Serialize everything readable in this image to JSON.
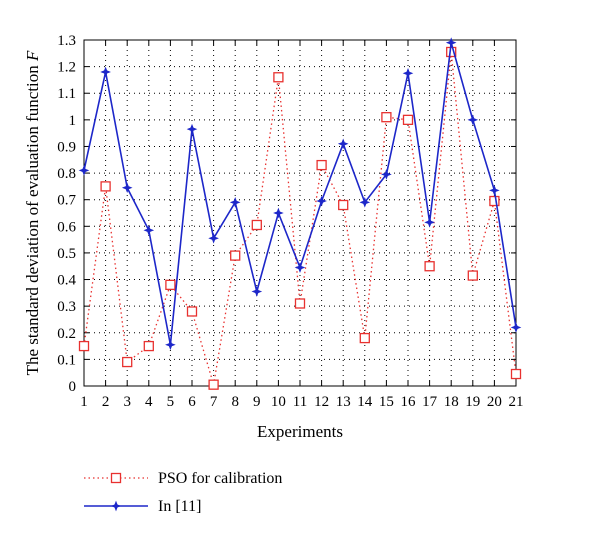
{
  "chart_data": {
    "type": "line",
    "xlabel": "Experiments",
    "ylabel_main": "The standard deviation of evaluation function ",
    "ylabel_symbol": "F",
    "xlim": [
      1,
      21
    ],
    "ylim": [
      0,
      1.3
    ],
    "x": [
      1,
      2,
      3,
      4,
      5,
      6,
      7,
      8,
      9,
      10,
      11,
      12,
      13,
      14,
      15,
      16,
      17,
      18,
      19,
      20,
      21
    ],
    "y_ticks": [
      "0",
      "0.1",
      "0.2",
      "0.3",
      "0.4",
      "0.5",
      "0.6",
      "0.7",
      "0.8",
      "0.9",
      "1",
      "1.1",
      "1.2",
      "1.3"
    ],
    "grid": true,
    "legend_position": "bottom-left",
    "series": [
      {
        "name": "PSO for calibration",
        "color": "#e8312f",
        "marker": "square",
        "line_style": "dotted",
        "values": [
          0.15,
          0.75,
          0.09,
          0.15,
          0.38,
          0.28,
          0.005,
          0.49,
          0.605,
          1.16,
          0.31,
          0.83,
          0.68,
          0.18,
          1.01,
          1.0,
          0.45,
          1.255,
          0.415,
          0.695,
          0.045
        ]
      },
      {
        "name": "In [11]",
        "color": "#1d27c9",
        "marker": "star",
        "line_style": "solid",
        "values": [
          0.81,
          1.18,
          0.745,
          0.585,
          0.155,
          0.965,
          0.555,
          0.69,
          0.355,
          0.65,
          0.445,
          0.695,
          0.91,
          0.69,
          0.795,
          1.175,
          0.615,
          1.29,
          1.0,
          0.735,
          0.22
        ]
      }
    ]
  }
}
